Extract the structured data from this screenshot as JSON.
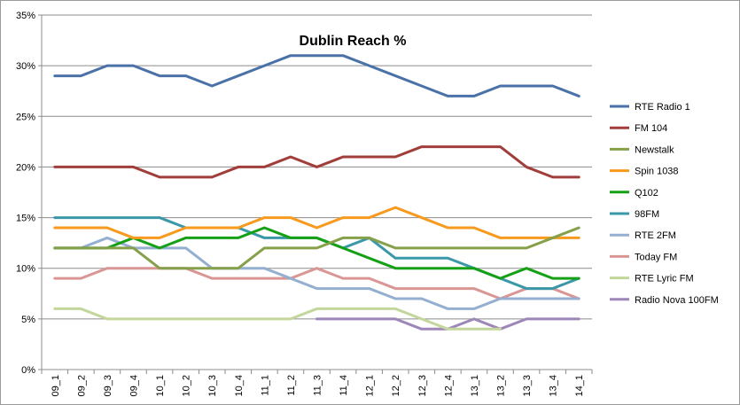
{
  "chart_data": {
    "type": "line",
    "title": "Dublin Reach %",
    "xlabel": "",
    "ylabel": "",
    "ylim": [
      0,
      35
    ],
    "yticks": [
      "0%",
      "5%",
      "10%",
      "15%",
      "20%",
      "25%",
      "30%",
      "35%"
    ],
    "grid": "horizontal",
    "legend": "right",
    "categories": [
      "09_1",
      "09_2",
      "09_3",
      "09_4",
      "10_1",
      "10_2",
      "10_3",
      "10_4",
      "11_1",
      "11_2",
      "11_3",
      "11_4",
      "12_1",
      "12_2",
      "12_3",
      "12_4",
      "13_1",
      "13_2",
      "13_3",
      "13_4",
      "14_1"
    ],
    "series": [
      {
        "name": "RTE Radio 1",
        "color": "#4a72a8",
        "values": [
          29,
          29,
          30,
          30,
          29,
          29,
          28,
          29,
          30,
          31,
          31,
          31,
          30,
          29,
          28,
          27,
          27,
          28,
          28,
          28,
          27
        ]
      },
      {
        "name": "FM 104",
        "color": "#a13d3a",
        "values": [
          20,
          20,
          20,
          20,
          19,
          19,
          19,
          20,
          20,
          21,
          20,
          21,
          21,
          21,
          22,
          22,
          22,
          22,
          20,
          19,
          19
        ]
      },
      {
        "name": "Newstalk",
        "color": "#86a04a",
        "values": [
          12,
          12,
          12,
          12,
          10,
          10,
          10,
          10,
          12,
          12,
          12,
          13,
          13,
          12,
          12,
          12,
          12,
          12,
          12,
          13,
          14
        ]
      },
      {
        "name": "Spin 1038",
        "color": "#f79a1e",
        "values": [
          14,
          14,
          14,
          13,
          13,
          14,
          14,
          14,
          15,
          15,
          14,
          15,
          15,
          16,
          15,
          14,
          14,
          13,
          13,
          13,
          13
        ]
      },
      {
        "name": "Q102",
        "color": "#16a016",
        "values": [
          12,
          12,
          12,
          13,
          12,
          13,
          13,
          13,
          14,
          13,
          13,
          12,
          11,
          10,
          10,
          10,
          10,
          9,
          10,
          9,
          9
        ]
      },
      {
        "name": "98FM",
        "color": "#3a98a8",
        "values": [
          15,
          15,
          15,
          15,
          15,
          14,
          14,
          14,
          13,
          13,
          13,
          12,
          13,
          11,
          11,
          11,
          10,
          9,
          8,
          8,
          9
        ]
      },
      {
        "name": "RTE 2FM",
        "color": "#94afd0",
        "values": [
          12,
          12,
          13,
          12,
          12,
          12,
          10,
          10,
          10,
          9,
          8,
          8,
          8,
          7,
          7,
          6,
          6,
          7,
          7,
          7,
          7
        ]
      },
      {
        "name": "Today FM",
        "color": "#d99694",
        "values": [
          9,
          9,
          10,
          10,
          10,
          10,
          9,
          9,
          9,
          9,
          10,
          9,
          9,
          8,
          8,
          8,
          8,
          7,
          8,
          8,
          7
        ]
      },
      {
        "name": "RTE Lyric FM",
        "color": "#c3d69b",
        "values": [
          6,
          6,
          5,
          5,
          5,
          5,
          5,
          5,
          5,
          5,
          6,
          6,
          6,
          6,
          5,
          4,
          4,
          4,
          null,
          null,
          null
        ]
      },
      {
        "name": "Radio Nova 100FM",
        "color": "#9d86b8",
        "values": [
          null,
          null,
          null,
          null,
          null,
          null,
          null,
          null,
          null,
          null,
          5,
          5,
          5,
          5,
          4,
          4,
          5,
          4,
          5,
          5,
          5
        ]
      }
    ]
  }
}
